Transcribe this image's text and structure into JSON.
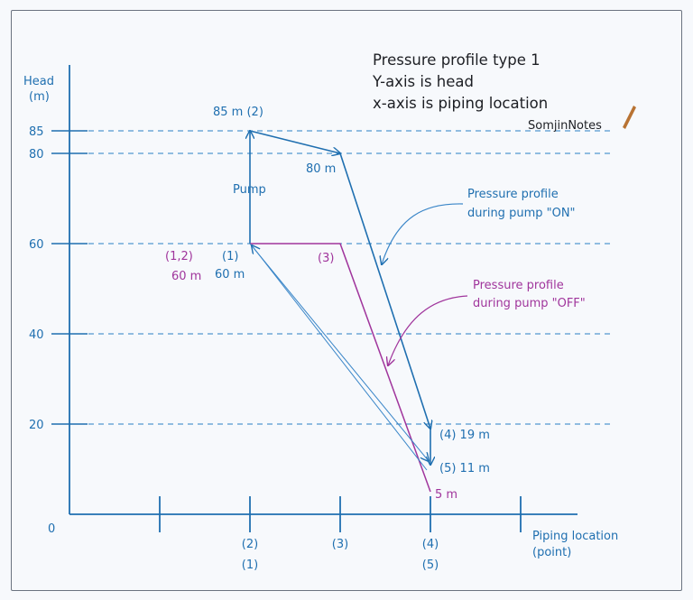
{
  "colors": {
    "on": "#1f6fb0",
    "off": "#a0359c",
    "axis": "#1f6fb0",
    "grid": "#2a7fc4",
    "thin": "#3a86c8",
    "text": "#1d1f24",
    "logo_pen": "#b87333"
  },
  "title_lines": [
    "Pressure profile type 1",
    "Y-axis is head",
    "x-axis is piping location"
  ],
  "logo": "SomjinNotes",
  "y_axis": {
    "label_line1": "Head",
    "label_line2": "(m)",
    "origin_label": "0",
    "ticks": [
      {
        "value": 85,
        "label": "85"
      },
      {
        "value": 80,
        "label": "80"
      },
      {
        "value": 60,
        "label": "60"
      },
      {
        "value": 40,
        "label": "40"
      },
      {
        "value": 20,
        "label": "20"
      }
    ]
  },
  "x_axis": {
    "label_line1": "Piping location",
    "label_line2": "(point)",
    "ticks": [
      {
        "pos": 1,
        "line1": "",
        "line2": ""
      },
      {
        "pos": 2,
        "line1": "(2)",
        "line2": "(1)"
      },
      {
        "pos": 3,
        "line1": "(3)",
        "line2": ""
      },
      {
        "pos": 4,
        "line1": "(4)",
        "line2": "(5)"
      },
      {
        "pos": 5,
        "line1": "",
        "line2": ""
      }
    ]
  },
  "profile_on": [
    {
      "x": 2,
      "y": 60,
      "point": "(1)",
      "head": "60 m"
    },
    {
      "x": 2,
      "y": 85,
      "point": "(2)",
      "head": "85 m"
    },
    {
      "x": 3,
      "y": 80,
      "head": "80 m"
    },
    {
      "x": 4,
      "y": 19,
      "point": "(4)",
      "head": "19 m"
    },
    {
      "x": 4,
      "y": 11,
      "point": "(5)",
      "head": "11 m"
    }
  ],
  "profile_off": [
    {
      "x": 2,
      "y": 60,
      "point": "(1,2)",
      "head": "60 m"
    },
    {
      "x": 3,
      "y": 60,
      "point": "(3)"
    },
    {
      "x": 4,
      "y": 5,
      "head": "5 m"
    }
  ],
  "labels": {
    "pump": "Pump",
    "p85": "85 m (2)",
    "p80": "80 m",
    "p1": "(1)",
    "p1_head": "60 m",
    "p12": "(1,2)",
    "p12_head": "60 m",
    "p3": "(3)",
    "p4": "(4)  19 m",
    "p5": "(5) 11 m",
    "p5m": "5 m"
  },
  "callouts": {
    "on_line1": "Pressure profile",
    "on_line2": "during pump \"ON\"",
    "off_line1": "Pressure profile",
    "off_line2": "during pump \"OFF\""
  }
}
